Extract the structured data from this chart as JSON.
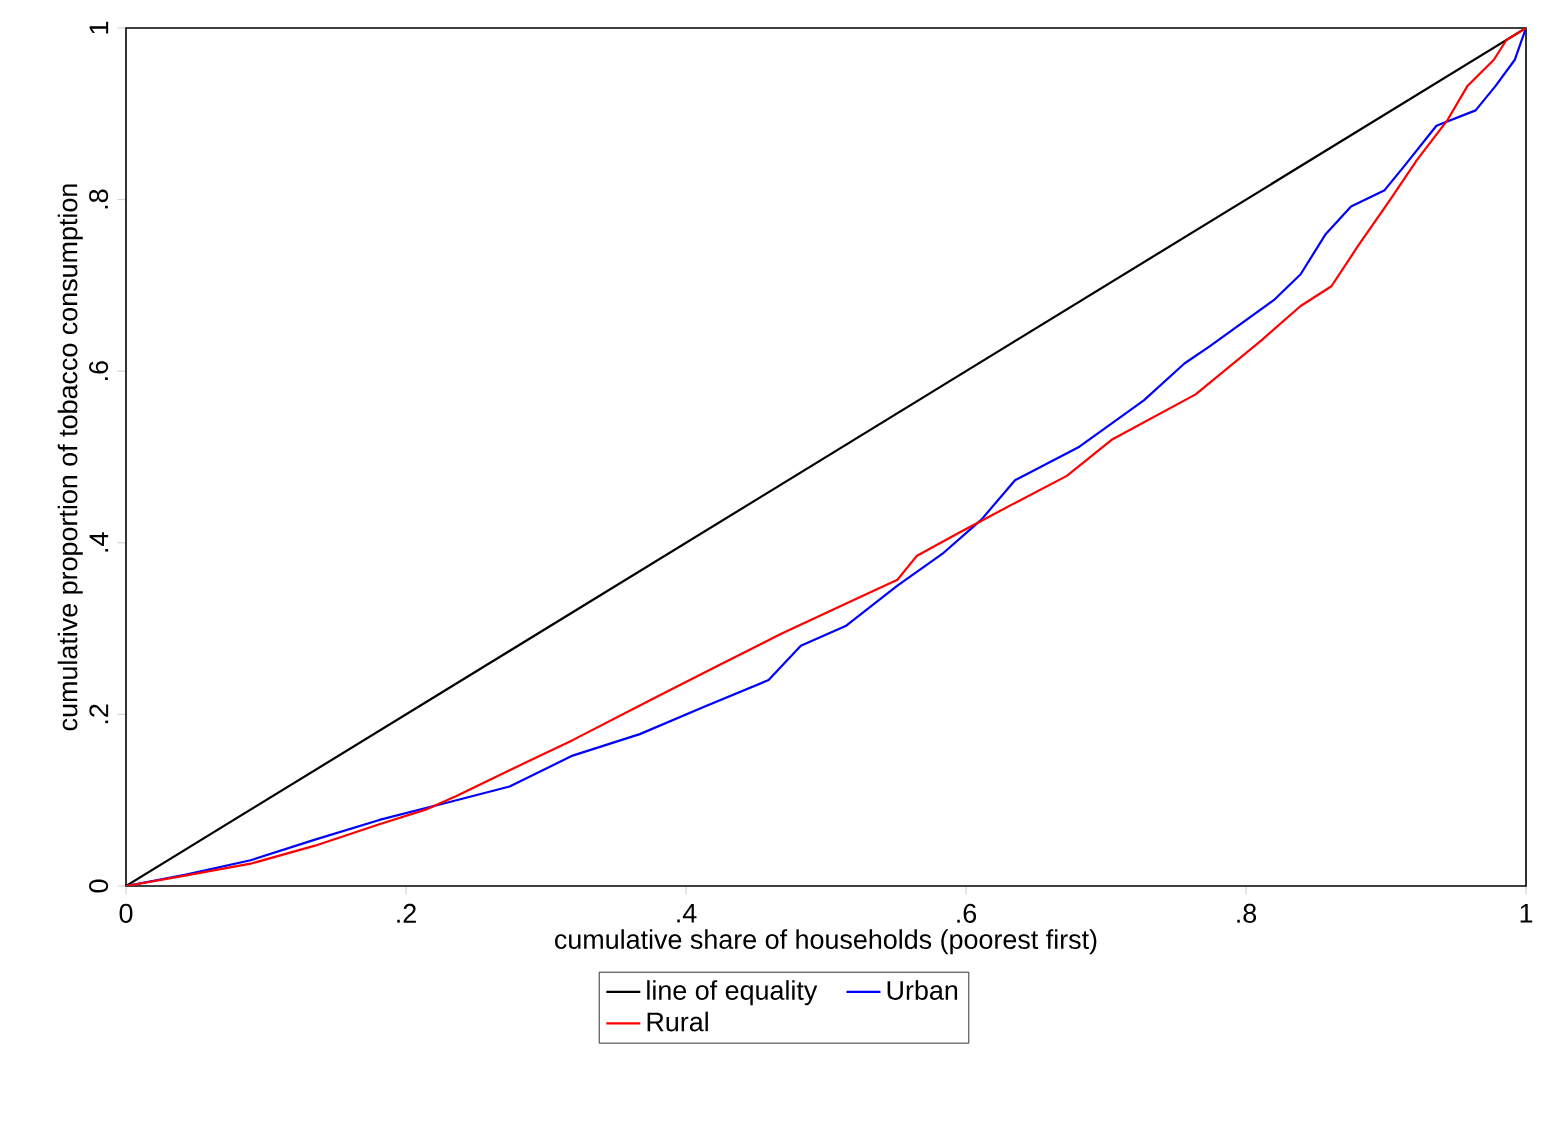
{
  "chart_data": {
    "type": "line",
    "xlabel": "cumulative share of households (poorest first)",
    "ylabel": "cumulative proportion of tobacco consumption",
    "xlim": [
      0,
      1
    ],
    "ylim": [
      0,
      1
    ],
    "xticks": [
      0,
      {
        "value": 0.2,
        "label": ".2"
      },
      {
        "value": 0.4,
        "label": ".4"
      },
      {
        "value": 0.6,
        "label": ".6"
      },
      {
        "value": 0.8,
        "label": ".8"
      },
      1
    ],
    "yticks": [
      0,
      {
        "value": 0.2,
        "label": ".2"
      },
      {
        "value": 0.4,
        "label": ".4"
      },
      {
        "value": 0.6,
        "label": ".6"
      },
      {
        "value": 0.8,
        "label": ".8"
      },
      1
    ],
    "grid": false,
    "legend": "bottom",
    "line_style": "solid",
    "marker": "none",
    "series": [
      {
        "name": "line of equality",
        "color": "#000000",
        "x": [
          0,
          1
        ],
        "values": [
          0,
          1
        ]
      },
      {
        "name": "Urban",
        "color": "#0000ff",
        "x": [
          0,
          0.042,
          0.089,
          0.135,
          0.181,
          0.236,
          0.274,
          0.319,
          0.367,
          0.413,
          0.459,
          0.482,
          0.514,
          0.551,
          0.583,
          0.611,
          0.635,
          0.681,
          0.727,
          0.756,
          0.774,
          0.82,
          0.839,
          0.857,
          0.875,
          0.899,
          0.913,
          0.936,
          0.964,
          0.978,
          0.992,
          1
        ],
        "values": [
          0,
          0.013,
          0.03,
          0.054,
          0.077,
          0.1,
          0.116,
          0.152,
          0.177,
          0.209,
          0.24,
          0.28,
          0.303,
          0.35,
          0.387,
          0.427,
          0.473,
          0.512,
          0.566,
          0.609,
          0.629,
          0.683,
          0.713,
          0.76,
          0.792,
          0.811,
          0.839,
          0.886,
          0.904,
          0.932,
          0.963,
          1
        ]
      },
      {
        "name": "Rural",
        "color": "#ff0000",
        "x": [
          0,
          0.042,
          0.089,
          0.135,
          0.181,
          0.214,
          0.236,
          0.274,
          0.319,
          0.375,
          0.422,
          0.468,
          0.514,
          0.551,
          0.565,
          0.593,
          0.631,
          0.672,
          0.704,
          0.764,
          0.811,
          0.839,
          0.861,
          0.88,
          0.903,
          0.922,
          0.944,
          0.958,
          0.977,
          0.986,
          1
        ],
        "values": [
          0,
          0.012,
          0.026,
          0.047,
          0.072,
          0.089,
          0.105,
          0.135,
          0.17,
          0.217,
          0.256,
          0.294,
          0.329,
          0.357,
          0.385,
          0.41,
          0.443,
          0.478,
          0.52,
          0.573,
          0.636,
          0.676,
          0.699,
          0.746,
          0.8,
          0.846,
          0.893,
          0.932,
          0.963,
          0.986,
          1
        ]
      }
    ]
  }
}
